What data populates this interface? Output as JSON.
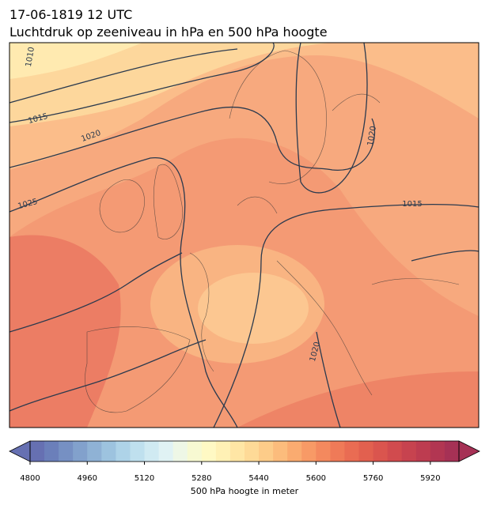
{
  "header": {
    "date": "17-06-1819 12 UTC",
    "title": "Luchtdruk op zeeniveau in hPa en 500 hPa hoogte"
  },
  "map": {
    "isobar_labels": [
      1010,
      1015,
      1020,
      1025,
      1015,
      1020,
      1020
    ]
  },
  "colorbar": {
    "label": "500 hPa hoogte in meter",
    "lim": [
      4800,
      6000
    ],
    "ticks": [
      4800,
      4960,
      5120,
      5280,
      5440,
      5600,
      5760,
      5920
    ],
    "colors": [
      "#6670b2",
      "#6b7fba",
      "#7690c3",
      "#82a1cc",
      "#8fb2d5",
      "#9dc3df",
      "#aed3e8",
      "#bfe0ee",
      "#d0eaf2",
      "#e0f2f4",
      "#eef7e6",
      "#f7f9d2",
      "#fff9c4",
      "#fff1b5",
      "#ffe6a5",
      "#feda97",
      "#fdcc89",
      "#fcbc7c",
      "#faab70",
      "#f89a66",
      "#f4895e",
      "#ef7a58",
      "#e96c53",
      "#e2604f",
      "#da554e",
      "#d14b4e",
      "#c7434f",
      "#bd3c50",
      "#b23652",
      "#a63155"
    ]
  }
}
